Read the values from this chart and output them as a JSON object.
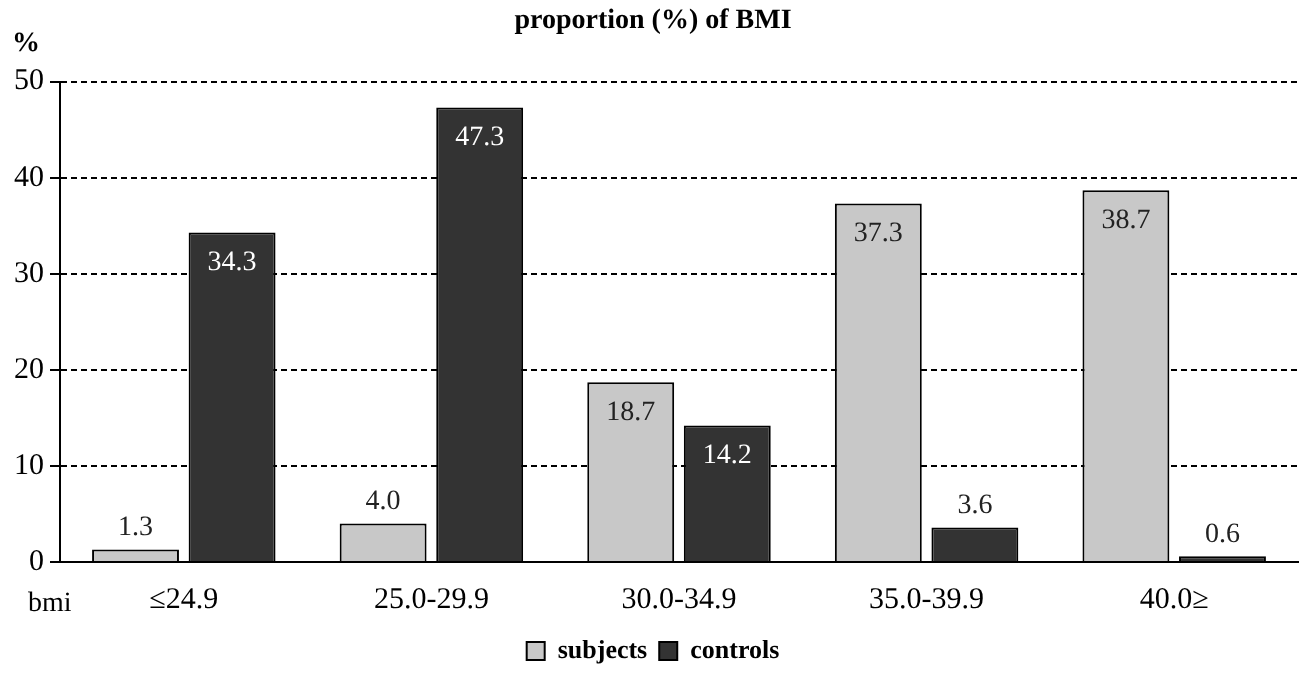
{
  "chart_data": {
    "type": "bar",
    "title": "proportion (%) of BMI",
    "ylabel": "%",
    "xlabel": "bmi",
    "categories": [
      "≤24.9",
      "25.0-29.9",
      "30.0-34.9",
      "35.0-39.9",
      "40.0≥"
    ],
    "series": [
      {
        "name": "subjects",
        "color": "#c8c8c8",
        "values": [
          1.3,
          4.0,
          18.7,
          37.3,
          38.7
        ],
        "value_labels": [
          "1.3",
          "4.0",
          "18.7",
          "37.3",
          "38.7"
        ]
      },
      {
        "name": "controls",
        "color": "#333333",
        "values": [
          34.3,
          47.3,
          14.2,
          3.6,
          0.6
        ],
        "value_labels": [
          "34.3",
          "47.3",
          "14.2",
          "3.6",
          "0.6"
        ]
      }
    ],
    "ylim": [
      0,
      50
    ],
    "yticks": [
      0,
      10,
      20,
      30,
      40,
      50
    ],
    "grid": "y",
    "legend": "bottom"
  }
}
